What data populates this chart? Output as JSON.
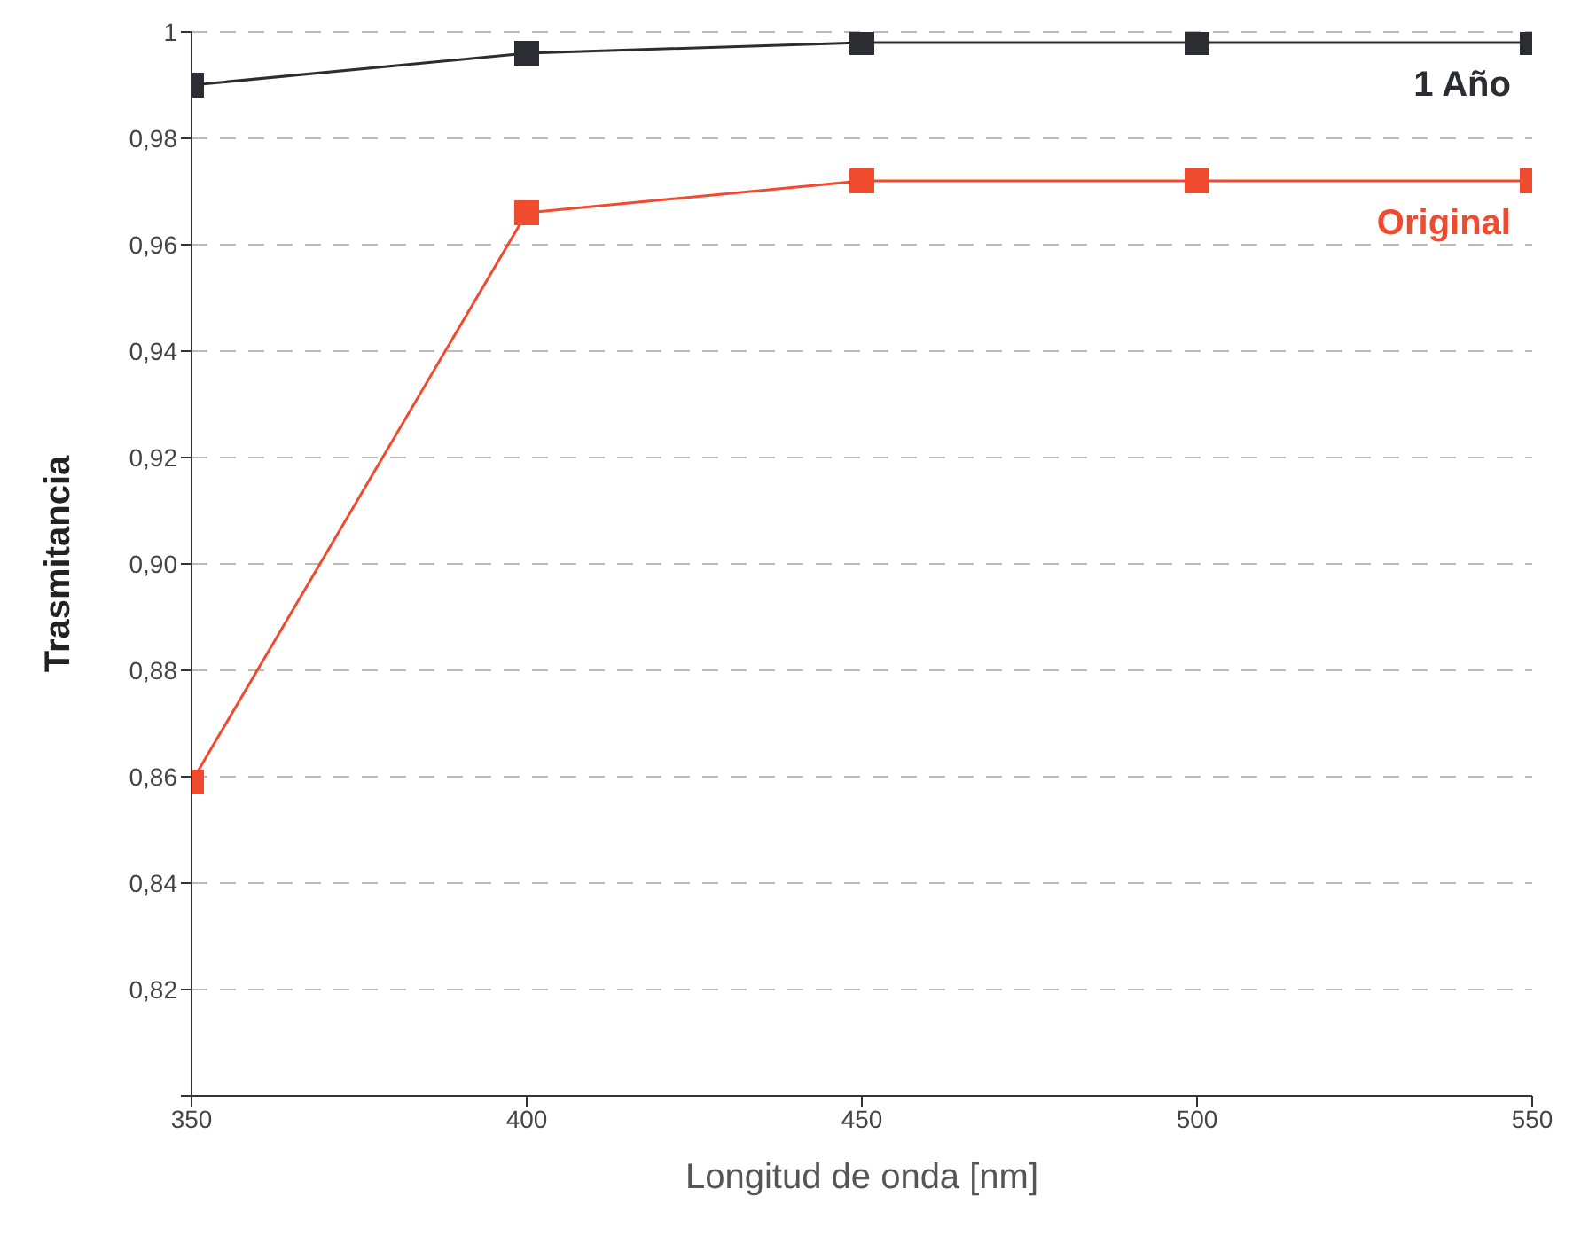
{
  "chart_data": {
    "type": "line",
    "xlabel": "Longitud de onda [nm]",
    "ylabel": "Trasmitancia",
    "x": [
      350,
      400,
      450,
      500,
      550
    ],
    "series": [
      {
        "name": "1 Año",
        "color": "#2b2d33",
        "values": [
          0.99,
          0.996,
          0.998,
          0.998,
          0.998
        ]
      },
      {
        "name": "Original",
        "color": "#f04a2f",
        "values": [
          0.859,
          0.966,
          0.972,
          0.972,
          0.972
        ]
      }
    ],
    "xlim": [
      350,
      550
    ],
    "xticks": [
      350,
      400,
      450,
      500,
      550
    ],
    "ylim": [
      0.8,
      1
    ],
    "yticks": [
      {
        "value": 0.8,
        "label": null
      },
      {
        "value": 0.82,
        "label": "0,82"
      },
      {
        "value": 0.84,
        "label": "0,84"
      },
      {
        "value": 0.86,
        "label": "0,86"
      },
      {
        "value": 0.88,
        "label": "0,88"
      },
      {
        "value": 0.9,
        "label": "0,90"
      },
      {
        "value": 0.92,
        "label": "0,92"
      },
      {
        "value": 0.94,
        "label": "0,94"
      },
      {
        "value": 0.96,
        "label": "0,96"
      },
      {
        "value": 0.98,
        "label": "0,98"
      },
      {
        "value": 1,
        "label": "1"
      }
    ],
    "grid": "y",
    "marker": "square",
    "line_style": "solid"
  }
}
